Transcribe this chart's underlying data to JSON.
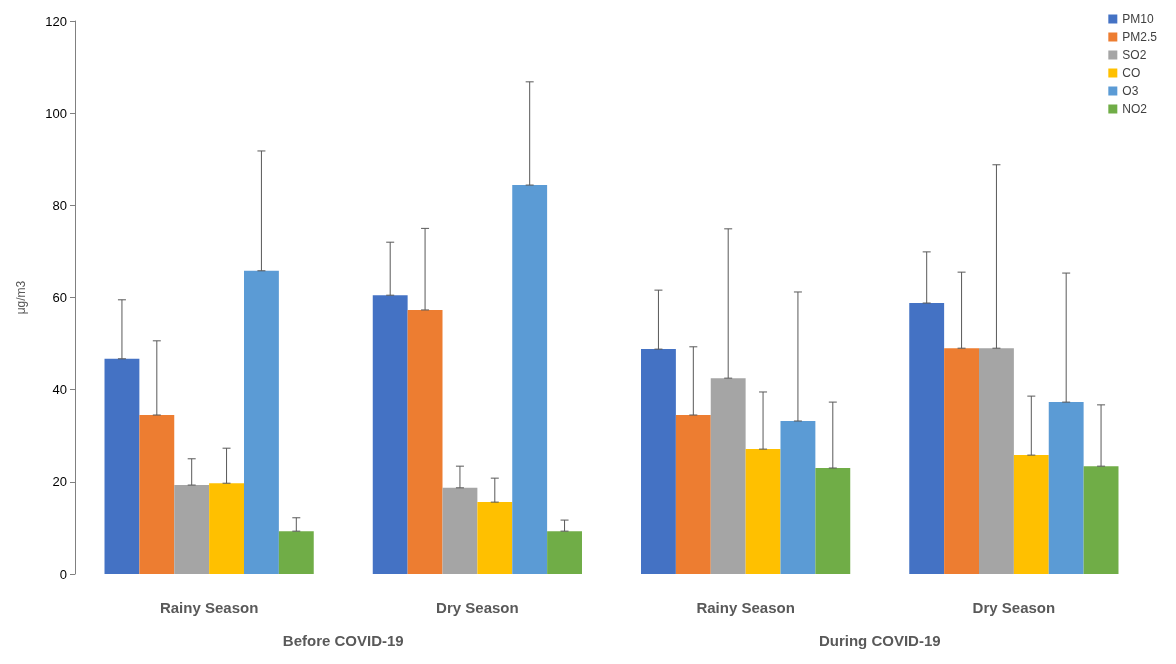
{
  "chart_data": {
    "type": "bar",
    "ylabel": "μg/m3",
    "categories": [
      "Rainy Season",
      "Dry Season",
      "Rainy Season",
      "Dry Season"
    ],
    "series": [
      {
        "name": "PM10",
        "color": "#4472c4",
        "values": [
          46.7,
          60.5,
          48.8,
          58.8
        ],
        "errors": [
          [
            46.7,
            59.5
          ],
          [
            60.5,
            72
          ],
          [
            48.8,
            61.6
          ],
          [
            58.8,
            69.9
          ]
        ]
      },
      {
        "name": "PM2.5",
        "color": "#ed7d31",
        "values": [
          34.5,
          57.3,
          34.5,
          49
        ],
        "errors": [
          [
            34.5,
            50.6
          ],
          [
            57.3,
            75
          ],
          [
            34.5,
            49.3
          ],
          [
            49,
            65.5
          ]
        ]
      },
      {
        "name": "SO2",
        "color": "#a5a5a5",
        "values": [
          19.3,
          18.7,
          42.5,
          49
        ],
        "errors": [
          [
            19.3,
            25
          ],
          [
            18.7,
            23.4
          ],
          [
            42.5,
            74.9
          ],
          [
            49,
            88.8
          ]
        ]
      },
      {
        "name": "CO",
        "color": "#ffc000",
        "values": [
          19.7,
          15.6,
          27.1,
          25.8
        ],
        "errors": [
          [
            19.7,
            27.3
          ],
          [
            15.6,
            20.8
          ],
          [
            27.1,
            39.5
          ],
          [
            25.8,
            38.6
          ]
        ]
      },
      {
        "name": "O3",
        "color": "#5b9bd5",
        "values": [
          65.8,
          84.4,
          33.2,
          37.3
        ],
        "errors": [
          [
            65.8,
            91.8
          ],
          [
            84.4,
            106.8
          ],
          [
            33.2,
            61.2
          ],
          [
            37.3,
            65.3
          ]
        ]
      },
      {
        "name": "NO2",
        "color": "#70ad47",
        "values": [
          9.3,
          9.3,
          23,
          23.4
        ],
        "errors": [
          [
            9.3,
            12.2
          ],
          [
            9.3,
            11.7
          ],
          [
            23,
            37.3
          ],
          [
            23.4,
            36.7
          ]
        ]
      }
    ],
    "ylim": [
      0,
      120
    ],
    "yticks": [
      0,
      20,
      40,
      60,
      80,
      100,
      120
    ],
    "grid": false,
    "legend": "top right",
    "annotations": [
      "Before COVID-19",
      "During COVID-19"
    ]
  }
}
